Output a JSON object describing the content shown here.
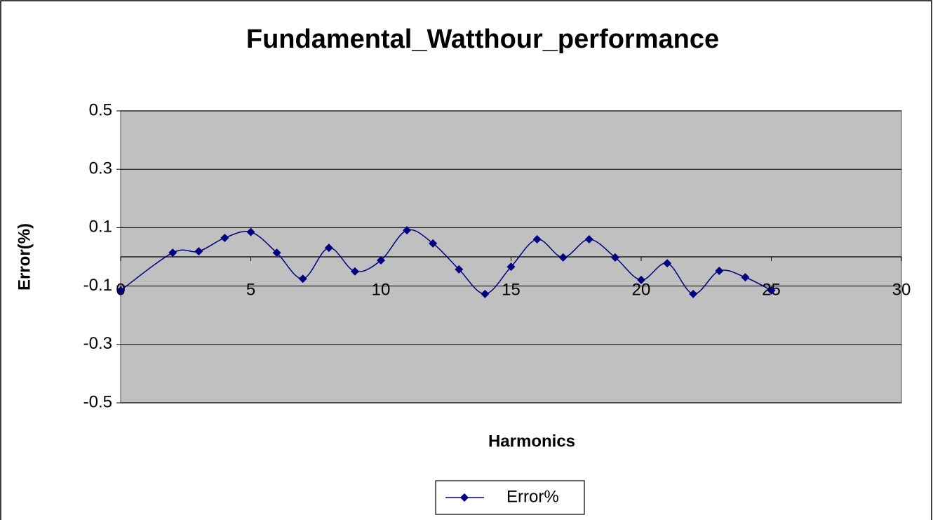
{
  "chart_data": {
    "type": "line",
    "title": "Fundamental_Watthour_performance",
    "x_label": "Harmonics",
    "y_label": "Error(%)",
    "x": [
      0,
      2,
      3,
      4,
      5,
      6,
      7,
      8,
      9,
      10,
      11,
      12,
      13,
      14,
      15,
      16,
      17,
      18,
      19,
      20,
      21,
      22,
      23,
      24,
      25
    ],
    "series": [
      {
        "name": "Error%",
        "color": "#000080",
        "values": [
          -0.115,
          0.014,
          0.019,
          0.065,
          0.085,
          0.014,
          -0.075,
          0.031,
          -0.05,
          -0.012,
          0.091,
          0.046,
          -0.043,
          -0.127,
          -0.034,
          0.06,
          -0.002,
          0.06,
          -0.002,
          -0.079,
          -0.022,
          -0.127,
          -0.048,
          -0.07,
          -0.115
        ]
      }
    ],
    "xlim": [
      0,
      30
    ],
    "xticks": [
      0,
      5,
      10,
      15,
      20,
      25,
      30
    ],
    "ylim": [
      -0.5,
      0.5
    ],
    "yticks": [
      0.5,
      0.3,
      0.1,
      -0.1,
      -0.3,
      -0.5
    ],
    "grid": true,
    "smooth": true,
    "legend": "bottom"
  }
}
